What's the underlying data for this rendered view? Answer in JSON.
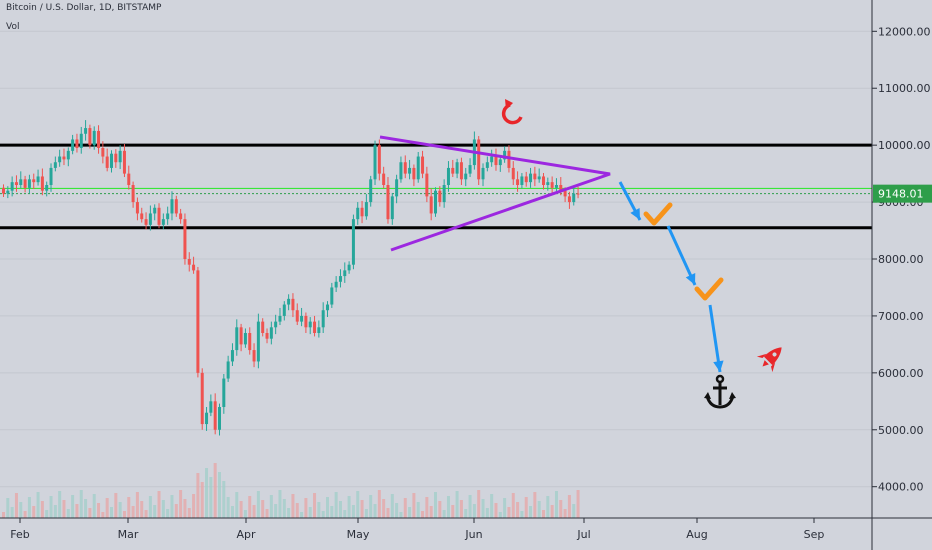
{
  "header": {
    "symbol_line": "Bitcoin / U.S. Dollar, 1D, BITSTAMP",
    "volume_label": "Vol"
  },
  "colors": {
    "background": "#d1d4dc",
    "up": "#26a69a",
    "down": "#ef5350",
    "support_line": "#000000",
    "green_line": "#39e639",
    "triangle": "#9c27e0",
    "arrow": "#2196f3",
    "check": "#f7931a",
    "price_tag": "#2e9e4a"
  },
  "annotations": {
    "current_price": "9148.01",
    "icons": [
      "refresh-icon",
      "checkmark-icon",
      "checkmark-icon",
      "anchor-icon",
      "rocket-icon"
    ]
  },
  "chart_data": {
    "type": "candlestick",
    "title": "Bitcoin / U.S. Dollar, 1D, BITSTAMP",
    "y_ticks": [
      "12000.00",
      "11000.00",
      "10000.00",
      "9000.00",
      "8000.00",
      "7000.00",
      "6000.00",
      "5000.00",
      "4000.00"
    ],
    "x_ticks": [
      "Feb",
      "Mar",
      "Apr",
      "May",
      "Jun",
      "Jul",
      "Aug",
      "Sep"
    ],
    "ylim": [
      3450,
      12550
    ],
    "horizontal_levels": [
      10000,
      8550
    ],
    "green_level": 9240,
    "last_price": 9148.01,
    "candles": [
      [
        9250,
        9150
      ],
      [
        9150,
        9200
      ],
      [
        9200,
        9350
      ],
      [
        9350,
        9300
      ],
      [
        9300,
        9400
      ],
      [
        9400,
        9250
      ],
      [
        9250,
        9400
      ],
      [
        9400,
        9350
      ],
      [
        9350,
        9450
      ],
      [
        9450,
        9200
      ],
      [
        9200,
        9300
      ],
      [
        9300,
        9600
      ],
      [
        9600,
        9700
      ],
      [
        9700,
        9800
      ],
      [
        9800,
        9750
      ],
      [
        9750,
        9900
      ],
      [
        9900,
        10100
      ],
      [
        10100,
        9950
      ],
      [
        9950,
        10200
      ],
      [
        10200,
        10300
      ],
      [
        10300,
        10000
      ],
      [
        10000,
        10250
      ],
      [
        10250,
        9950
      ],
      [
        9950,
        9800
      ],
      [
        9800,
        9600
      ],
      [
        9600,
        9850
      ],
      [
        9850,
        9700
      ],
      [
        9700,
        9900
      ],
      [
        9900,
        9500
      ],
      [
        9500,
        9300
      ],
      [
        9300,
        9000
      ],
      [
        9000,
        8800
      ],
      [
        8800,
        8700
      ],
      [
        8700,
        8600
      ],
      [
        8600,
        8800
      ],
      [
        8800,
        8900
      ],
      [
        8900,
        8600
      ],
      [
        8600,
        8700
      ],
      [
        8700,
        8800
      ],
      [
        8800,
        9050
      ],
      [
        9050,
        8800
      ],
      [
        8800,
        8700
      ],
      [
        8700,
        8000
      ],
      [
        8000,
        7900
      ],
      [
        7900,
        7800
      ],
      [
        7800,
        6000
      ],
      [
        6000,
        5100
      ],
      [
        5100,
        5300
      ],
      [
        5300,
        5500
      ],
      [
        5500,
        5000
      ],
      [
        5000,
        5400
      ],
      [
        5400,
        5900
      ],
      [
        5900,
        6200
      ],
      [
        6200,
        6400
      ],
      [
        6400,
        6800
      ],
      [
        6800,
        6500
      ],
      [
        6500,
        6700
      ],
      [
        6700,
        6400
      ],
      [
        6400,
        6200
      ],
      [
        6200,
        6900
      ],
      [
        6900,
        6700
      ],
      [
        6700,
        6600
      ],
      [
        6600,
        6800
      ],
      [
        6800,
        6900
      ],
      [
        6900,
        7000
      ],
      [
        7000,
        7200
      ],
      [
        7200,
        7300
      ],
      [
        7300,
        7100
      ],
      [
        7100,
        6900
      ],
      [
        6900,
        7000
      ],
      [
        7000,
        6800
      ],
      [
        6800,
        6900
      ],
      [
        6900,
        6700
      ],
      [
        6700,
        6800
      ],
      [
        6800,
        7100
      ],
      [
        7100,
        7200
      ],
      [
        7200,
        7500
      ],
      [
        7500,
        7600
      ],
      [
        7600,
        7700
      ],
      [
        7700,
        7800
      ],
      [
        7800,
        7900
      ],
      [
        7900,
        8700
      ],
      [
        8700,
        8900
      ],
      [
        8900,
        8750
      ],
      [
        8750,
        9000
      ],
      [
        9000,
        9400
      ],
      [
        9400,
        10000
      ],
      [
        10000,
        9500
      ],
      [
        9500,
        9300
      ],
      [
        9300,
        8700
      ],
      [
        8700,
        9100
      ],
      [
        9100,
        9400
      ],
      [
        9400,
        9700
      ],
      [
        9700,
        9500
      ],
      [
        9500,
        9600
      ],
      [
        9600,
        9400
      ],
      [
        9400,
        9800
      ],
      [
        9800,
        9500
      ],
      [
        9500,
        9100
      ],
      [
        9100,
        8800
      ],
      [
        8800,
        9200
      ],
      [
        9200,
        9000
      ],
      [
        9000,
        9300
      ],
      [
        9300,
        9600
      ],
      [
        9600,
        9500
      ],
      [
        9500,
        9700
      ],
      [
        9700,
        9400
      ],
      [
        9400,
        9500
      ],
      [
        9500,
        9650
      ],
      [
        9650,
        10100
      ],
      [
        10100,
        9400
      ],
      [
        9400,
        9600
      ],
      [
        9600,
        9700
      ],
      [
        9700,
        9800
      ],
      [
        9800,
        9650
      ],
      [
        9650,
        9750
      ],
      [
        9750,
        9900
      ],
      [
        9900,
        9600
      ],
      [
        9600,
        9400
      ],
      [
        9400,
        9300
      ],
      [
        9300,
        9450
      ],
      [
        9450,
        9350
      ],
      [
        9350,
        9500
      ],
      [
        9500,
        9400
      ],
      [
        9400,
        9450
      ],
      [
        9450,
        9300
      ],
      [
        9300,
        9350
      ],
      [
        9350,
        9250
      ],
      [
        9250,
        9300
      ],
      [
        9300,
        9200
      ],
      [
        9200,
        9100
      ],
      [
        9100,
        9000
      ],
      [
        9000,
        9150
      ],
      [
        9150,
        9148
      ]
    ]
  }
}
